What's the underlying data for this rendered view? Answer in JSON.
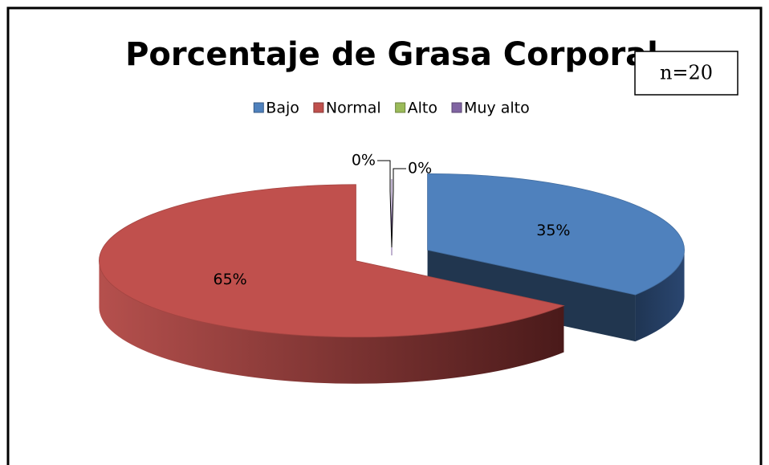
{
  "chart_data": {
    "type": "pie3d",
    "title": "Porcentaje de Grasa Corporal",
    "annotation": "n=20",
    "categories": [
      "Bajo",
      "Normal",
      "Alto",
      "Muy alto"
    ],
    "values": [
      35,
      65,
      0,
      0
    ],
    "value_labels": [
      "35%",
      "65%",
      "0%",
      "0%"
    ],
    "colors": [
      "#4f81bd",
      "#c0504d",
      "#9bbb59",
      "#8064a2"
    ],
    "legend": "top"
  }
}
